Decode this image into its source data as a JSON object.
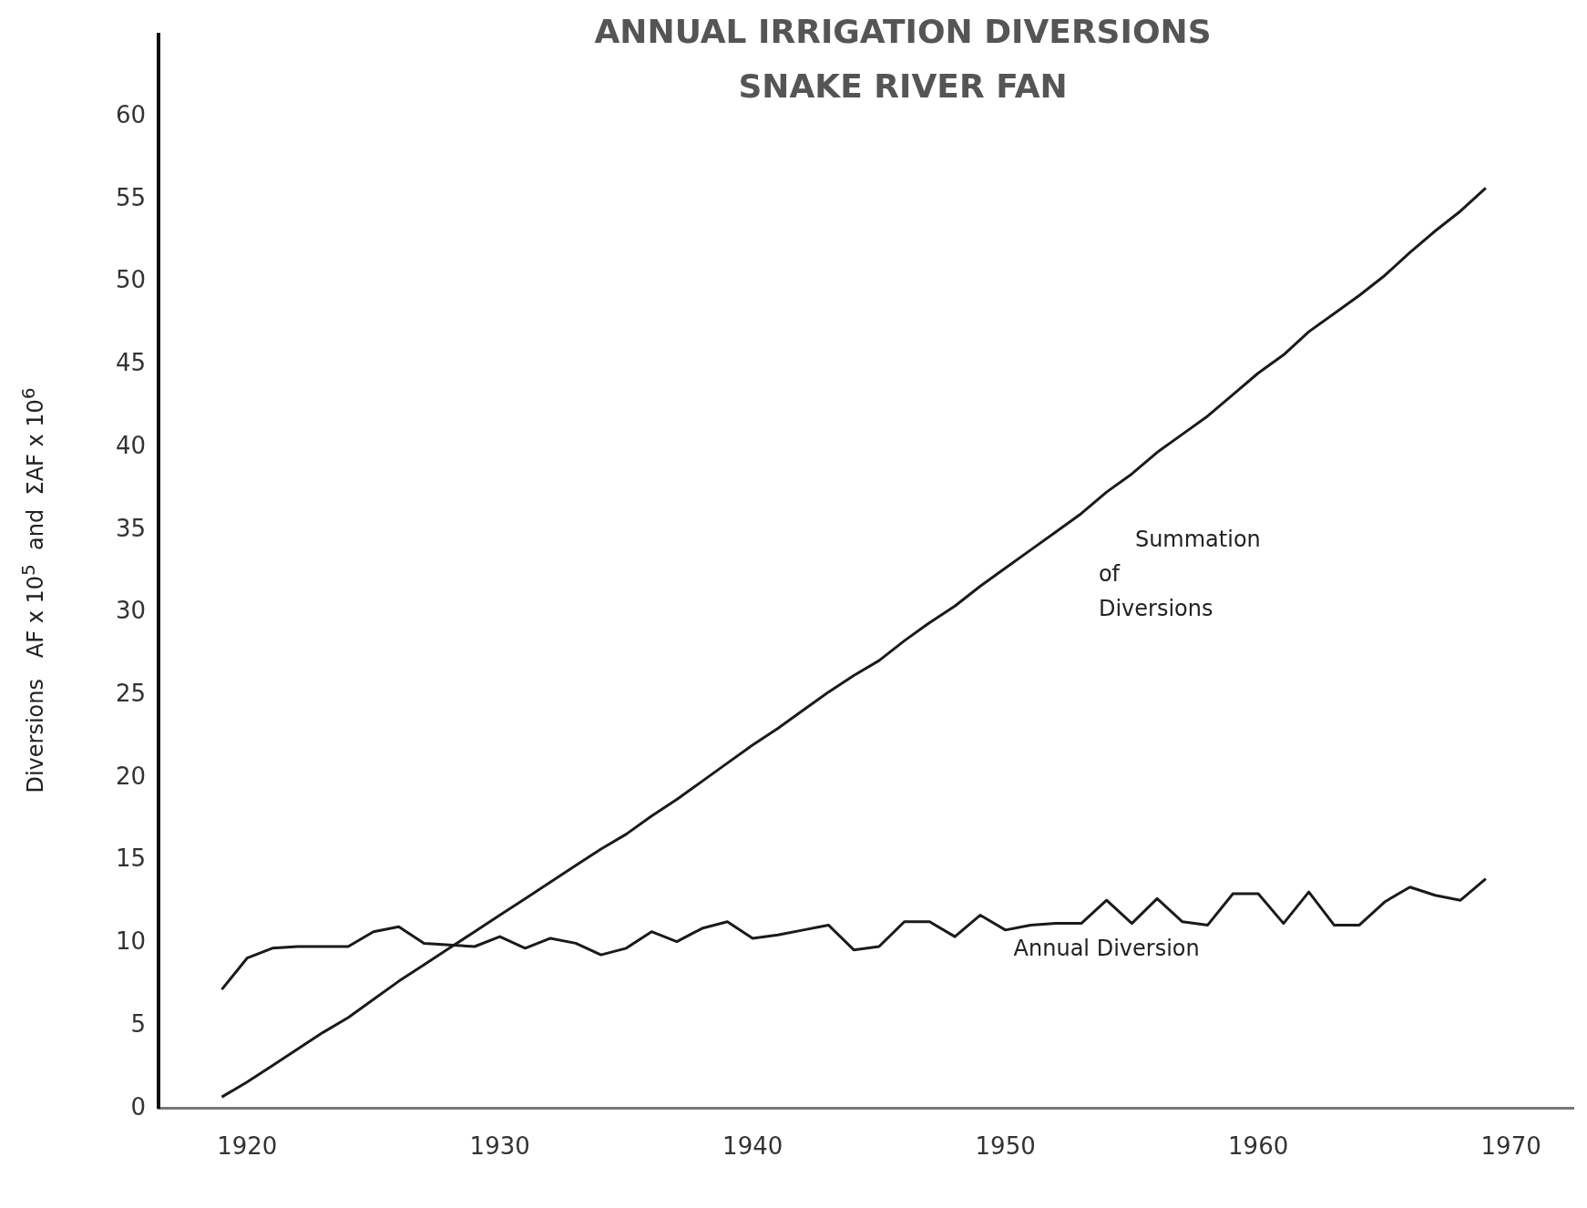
{
  "chart_data": {
    "type": "line",
    "title": "ANNUAL IRRIGATION DIVERSIONS",
    "subtitle": "SNAKE RIVER FAN",
    "ylabel": "Diversions   AF x 10$^{5}$  and  ΣAF x 10$^{6}$",
    "x": [
      1919,
      1920,
      1921,
      1922,
      1923,
      1924,
      1925,
      1926,
      1927,
      1928,
      1929,
      1930,
      1931,
      1932,
      1933,
      1934,
      1935,
      1936,
      1937,
      1938,
      1939,
      1940,
      1941,
      1942,
      1943,
      1944,
      1945,
      1946,
      1947,
      1948,
      1949,
      1950,
      1951,
      1952,
      1953,
      1954,
      1955,
      1956,
      1957,
      1958,
      1959,
      1960,
      1961,
      1962,
      1963,
      1964,
      1965,
      1966,
      1967,
      1968,
      1969
    ],
    "series": [
      {
        "name": "Annual Diversion",
        "color": "#1a1a1a",
        "values": [
          7.2,
          9.1,
          9.7,
          9.8,
          9.8,
          9.8,
          10.7,
          11.0,
          10.0,
          9.9,
          9.8,
          10.4,
          9.7,
          10.3,
          10.0,
          9.3,
          9.7,
          10.7,
          10.1,
          10.9,
          11.3,
          10.3,
          10.5,
          10.8,
          11.1,
          9.6,
          9.8,
          11.3,
          11.3,
          10.4,
          11.7,
          10.8,
          11.1,
          11.2,
          11.2,
          12.6,
          11.2,
          12.7,
          11.3,
          11.1,
          13.0,
          13.0,
          11.2,
          13.1,
          11.1,
          11.1,
          12.5,
          13.4,
          12.9,
          12.6,
          13.9
        ]
      },
      {
        "name": "Summation of Diversions",
        "color": "#1a1a1a",
        "values": [
          0.7,
          1.6,
          2.6,
          3.6,
          4.6,
          5.5,
          6.6,
          7.7,
          8.7,
          9.7,
          10.7,
          11.7,
          12.7,
          13.7,
          14.7,
          15.7,
          16.6,
          17.7,
          18.7,
          19.8,
          20.9,
          22.0,
          23.0,
          24.1,
          25.2,
          26.2,
          27.1,
          28.3,
          29.4,
          30.4,
          31.6,
          32.7,
          33.8,
          34.9,
          36.0,
          37.3,
          38.4,
          39.7,
          40.8,
          41.9,
          43.2,
          44.5,
          45.6,
          47.0,
          48.1,
          49.2,
          50.4,
          51.8,
          53.1,
          54.3,
          55.7
        ]
      }
    ],
    "xlim": [
      1916.5,
      1972.5
    ],
    "xticks": [
      1920,
      1930,
      1940,
      1950,
      1960,
      1970
    ],
    "ylim": [
      0,
      65
    ],
    "yticks": [
      0,
      5,
      10,
      15,
      20,
      25,
      30,
      35,
      40,
      45,
      50,
      55,
      60
    ],
    "grid": false,
    "line_style": "solid"
  }
}
